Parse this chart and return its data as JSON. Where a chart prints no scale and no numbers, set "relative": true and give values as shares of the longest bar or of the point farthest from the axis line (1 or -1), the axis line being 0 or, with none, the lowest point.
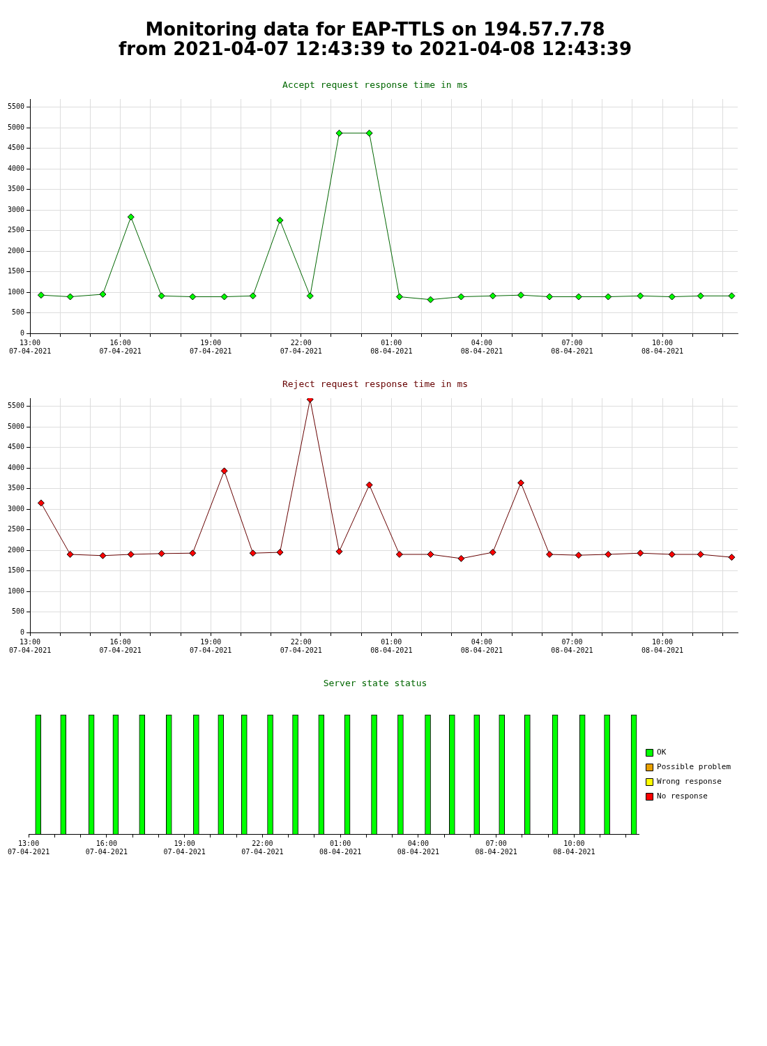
{
  "chart_data": [
    {
      "type": "line",
      "title": "Monitoring data for EAP-TTLS on 194.57.7.78\nfrom 2021-04-07 12:43:39 to 2021-04-08 12:43:39",
      "subtitle": "Accept request response time in ms",
      "x": [
        "2021-04-07T13:22",
        "2021-04-07T14:20",
        "2021-04-07T15:25",
        "2021-04-07T16:21",
        "2021-04-07T17:22",
        "2021-04-07T18:24",
        "2021-04-07T19:27",
        "2021-04-07T20:24",
        "2021-04-07T21:18",
        "2021-04-07T22:18",
        "2021-04-07T23:16",
        "2021-04-08T00:16",
        "2021-04-08T01:16",
        "2021-04-08T02:18",
        "2021-04-08T03:19",
        "2021-04-08T04:22",
        "2021-04-08T05:18",
        "2021-04-08T06:15",
        "2021-04-08T07:13",
        "2021-04-08T08:12",
        "2021-04-08T09:16",
        "2021-04-08T10:19",
        "2021-04-08T11:16",
        "2021-04-08T12:18"
      ],
      "series": [
        {
          "color": "#00ff00",
          "values": [
            930,
            890,
            950,
            2830,
            910,
            890,
            890,
            910,
            2750,
            910,
            4870,
            4870,
            890,
            820,
            890,
            910,
            930,
            890,
            890,
            890,
            910,
            890,
            910,
            910
          ]
        }
      ],
      "xlim": [
        "2021-04-07T13:00",
        "2021-04-08T12:30"
      ],
      "xticks": [
        {
          "value": "2021-04-07T13:00",
          "label": "13:00 07-04-2021"
        },
        {
          "value": "2021-04-07T14:00",
          "label": null
        },
        {
          "value": "2021-04-07T15:00",
          "label": null
        },
        {
          "value": "2021-04-07T16:00",
          "label": "16:00 07-04-2021"
        },
        {
          "value": "2021-04-07T17:00",
          "label": null
        },
        {
          "value": "2021-04-07T18:00",
          "label": null
        },
        {
          "value": "2021-04-07T19:00",
          "label": "19:00 07-04-2021"
        },
        {
          "value": "2021-04-07T20:00",
          "label": null
        },
        {
          "value": "2021-04-07T21:00",
          "label": null
        },
        {
          "value": "2021-04-07T22:00",
          "label": "22:00 07-04-2021"
        },
        {
          "value": "2021-04-07T23:00",
          "label": null
        },
        {
          "value": "2021-04-08T00:00",
          "label": null
        },
        {
          "value": "2021-04-08T01:00",
          "label": "01:00 08-04-2021"
        },
        {
          "value": "2021-04-08T02:00",
          "label": null
        },
        {
          "value": "2021-04-08T03:00",
          "label": null
        },
        {
          "value": "2021-04-08T04:00",
          "label": "04:00 08-04-2021"
        },
        {
          "value": "2021-04-08T05:00",
          "label": null
        },
        {
          "value": "2021-04-08T06:00",
          "label": null
        },
        {
          "value": "2021-04-08T07:00",
          "label": "07:00 08-04-2021"
        },
        {
          "value": "2021-04-08T08:00",
          "label": null
        },
        {
          "value": "2021-04-08T09:00",
          "label": null
        },
        {
          "value": "2021-04-08T10:00",
          "label": "10:00 08-04-2021"
        },
        {
          "value": "2021-04-08T11:00",
          "label": null
        },
        {
          "value": "2021-04-08T12:00",
          "label": null
        }
      ],
      "ylim": [
        0,
        5700
      ],
      "yticks": [
        0,
        500,
        1000,
        1500,
        2000,
        2500,
        3000,
        3500,
        4000,
        4500,
        5000,
        5500
      ],
      "grid": true,
      "marker": "diamond",
      "line_style": "solid"
    },
    {
      "type": "line",
      "title": "Reject request response time in ms",
      "x": [
        "2021-04-07T13:22",
        "2021-04-07T14:20",
        "2021-04-07T15:25",
        "2021-04-07T16:21",
        "2021-04-07T17:22",
        "2021-04-07T18:24",
        "2021-04-07T19:27",
        "2021-04-07T20:24",
        "2021-04-07T21:18",
        "2021-04-07T22:18",
        "2021-04-07T23:16",
        "2021-04-08T00:16",
        "2021-04-08T01:16",
        "2021-04-08T02:18",
        "2021-04-08T03:19",
        "2021-04-08T04:22",
        "2021-04-08T05:18",
        "2021-04-08T06:15",
        "2021-04-08T07:13",
        "2021-04-08T08:12",
        "2021-04-08T09:16",
        "2021-04-08T10:19",
        "2021-04-08T11:16",
        "2021-04-08T12:18"
      ],
      "series": [
        {
          "color": "#ff0000",
          "values": [
            3150,
            1900,
            1870,
            1900,
            1920,
            1930,
            3930,
            1930,
            1950,
            5670,
            1970,
            3590,
            1900,
            1900,
            1800,
            1950,
            3640,
            1900,
            1880,
            1900,
            1930,
            1900,
            1900,
            1830
          ]
        }
      ],
      "xlim": [
        "2021-04-07T13:00",
        "2021-04-08T12:30"
      ],
      "xticks": [
        {
          "value": "2021-04-07T13:00",
          "label": "13:00 07-04-2021"
        },
        {
          "value": "2021-04-07T14:00",
          "label": null
        },
        {
          "value": "2021-04-07T15:00",
          "label": null
        },
        {
          "value": "2021-04-07T16:00",
          "label": "16:00 07-04-2021"
        },
        {
          "value": "2021-04-07T17:00",
          "label": null
        },
        {
          "value": "2021-04-07T18:00",
          "label": null
        },
        {
          "value": "2021-04-07T19:00",
          "label": "19:00 07-04-2021"
        },
        {
          "value": "2021-04-07T20:00",
          "label": null
        },
        {
          "value": "2021-04-07T21:00",
          "label": null
        },
        {
          "value": "2021-04-07T22:00",
          "label": "22:00 07-04-2021"
        },
        {
          "value": "2021-04-07T23:00",
          "label": null
        },
        {
          "value": "2021-04-08T00:00",
          "label": null
        },
        {
          "value": "2021-04-08T01:00",
          "label": "01:00 08-04-2021"
        },
        {
          "value": "2021-04-08T02:00",
          "label": null
        },
        {
          "value": "2021-04-08T03:00",
          "label": null
        },
        {
          "value": "2021-04-08T04:00",
          "label": "04:00 08-04-2021"
        },
        {
          "value": "2021-04-08T05:00",
          "label": null
        },
        {
          "value": "2021-04-08T06:00",
          "label": null
        },
        {
          "value": "2021-04-08T07:00",
          "label": "07:00 08-04-2021"
        },
        {
          "value": "2021-04-08T08:00",
          "label": null
        },
        {
          "value": "2021-04-08T09:00",
          "label": null
        },
        {
          "value": "2021-04-08T10:00",
          "label": "10:00 08-04-2021"
        },
        {
          "value": "2021-04-08T11:00",
          "label": null
        },
        {
          "value": "2021-04-08T12:00",
          "label": null
        }
      ],
      "ylim": [
        0,
        5700
      ],
      "yticks": [
        0,
        500,
        1000,
        1500,
        2000,
        2500,
        3000,
        3500,
        4000,
        4500,
        5000,
        5500
      ],
      "grid": true,
      "marker": "diamond",
      "line_style": "solid"
    },
    {
      "type": "bar",
      "title": "Server state status",
      "relative": true,
      "x": [
        "2021-04-07T13:22",
        "2021-04-07T14:20",
        "2021-04-07T15:25",
        "2021-04-07T16:21",
        "2021-04-07T17:22",
        "2021-04-07T18:24",
        "2021-04-07T19:27",
        "2021-04-07T20:24",
        "2021-04-07T21:18",
        "2021-04-07T22:18",
        "2021-04-07T23:16",
        "2021-04-08T00:16",
        "2021-04-08T01:16",
        "2021-04-08T02:18",
        "2021-04-08T03:19",
        "2021-04-08T04:22",
        "2021-04-08T05:18",
        "2021-04-08T06:15",
        "2021-04-08T07:13",
        "2021-04-08T08:12",
        "2021-04-08T09:16",
        "2021-04-08T10:19",
        "2021-04-08T11:16",
        "2021-04-08T12:18"
      ],
      "series": [
        {
          "name": "OK",
          "color": "#00ff00",
          "values": [
            1,
            1,
            1,
            1,
            1,
            1,
            1,
            1,
            1,
            1,
            1,
            1,
            1,
            1,
            1,
            1,
            1,
            1,
            1,
            1,
            1,
            1,
            1,
            1
          ]
        },
        {
          "name": "Possible problem",
          "color": "#e8a000",
          "values": [
            null,
            null,
            null,
            null,
            null,
            null,
            null,
            null,
            null,
            null,
            null,
            null,
            null,
            null,
            null,
            null,
            null,
            null,
            null,
            null,
            null,
            null,
            null,
            null
          ]
        },
        {
          "name": "Wrong response",
          "color": "#ffff00",
          "values": [
            null,
            null,
            null,
            null,
            null,
            null,
            null,
            null,
            null,
            null,
            null,
            null,
            null,
            null,
            null,
            null,
            null,
            null,
            null,
            null,
            null,
            null,
            null,
            null
          ]
        },
        {
          "name": "No response",
          "color": "#ff0000",
          "values": [
            null,
            null,
            null,
            null,
            null,
            null,
            null,
            null,
            null,
            null,
            null,
            null,
            null,
            null,
            null,
            null,
            null,
            null,
            null,
            null,
            null,
            null,
            null,
            null
          ]
        }
      ],
      "xlim": [
        "2021-04-07T13:00",
        "2021-04-08T12:30"
      ],
      "xticks": [
        {
          "value": "2021-04-07T13:00",
          "label": "13:00 07-04-2021"
        },
        {
          "value": "2021-04-07T14:00",
          "label": null
        },
        {
          "value": "2021-04-07T15:00",
          "label": null
        },
        {
          "value": "2021-04-07T16:00",
          "label": "16:00 07-04-2021"
        },
        {
          "value": "2021-04-07T17:00",
          "label": null
        },
        {
          "value": "2021-04-07T18:00",
          "label": null
        },
        {
          "value": "2021-04-07T19:00",
          "label": "19:00 07-04-2021"
        },
        {
          "value": "2021-04-07T20:00",
          "label": null
        },
        {
          "value": "2021-04-07T21:00",
          "label": null
        },
        {
          "value": "2021-04-07T22:00",
          "label": "22:00 07-04-2021"
        },
        {
          "value": "2021-04-07T23:00",
          "label": null
        },
        {
          "value": "2021-04-08T00:00",
          "label": null
        },
        {
          "value": "2021-04-08T01:00",
          "label": "01:00 08-04-2021"
        },
        {
          "value": "2021-04-08T02:00",
          "label": null
        },
        {
          "value": "2021-04-08T03:00",
          "label": null
        },
        {
          "value": "2021-04-08T04:00",
          "label": "04:00 08-04-2021"
        },
        {
          "value": "2021-04-08T05:00",
          "label": null
        },
        {
          "value": "2021-04-08T06:00",
          "label": null
        },
        {
          "value": "2021-04-08T07:00",
          "label": "07:00 08-04-2021"
        },
        {
          "value": "2021-04-08T08:00",
          "label": null
        },
        {
          "value": "2021-04-08T09:00",
          "label": null
        },
        {
          "value": "2021-04-08T10:00",
          "label": "10:00 08-04-2021"
        },
        {
          "value": "2021-04-08T11:00",
          "label": null
        },
        {
          "value": "2021-04-08T12:00",
          "label": null
        }
      ],
      "legend": "right",
      "tick_labels": "x"
    }
  ]
}
